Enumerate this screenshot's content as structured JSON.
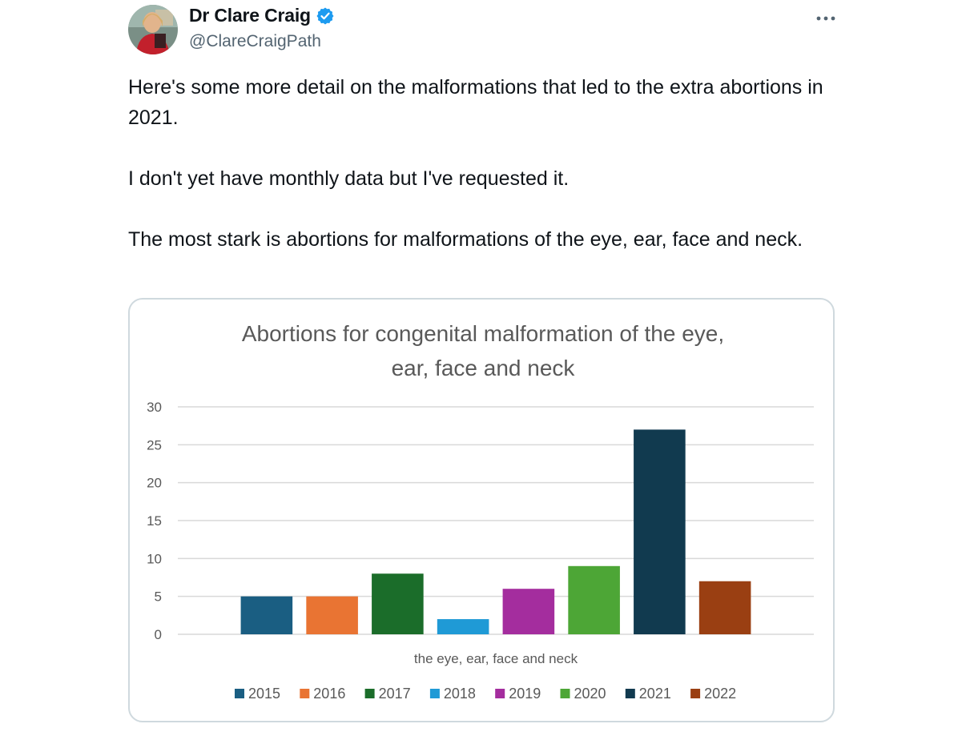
{
  "tweet": {
    "author": {
      "display_name": "Dr Clare Craig",
      "handle": "@ClareCraigPath",
      "verified": true
    },
    "more_icon": "more-horizontal-icon",
    "paragraphs": [
      "Here's some more detail on the malformations that led to the extra abortions in 2021.",
      "I don't yet have monthly data but I've requested it.",
      "The most stark is abortions for malformations of the eye, ear, face and neck."
    ]
  },
  "colors": {
    "text_primary": "#0f1419",
    "text_secondary": "#536471",
    "verified_blue": "#1d9bf0",
    "card_border": "#cfd9de"
  },
  "chart_data": {
    "type": "bar",
    "title_lines": [
      "Abortions for congenital malformation of the eye,",
      "ear, face and neck"
    ],
    "xlabel": "the eye, ear, face and neck",
    "ylabel": "",
    "ylim": [
      0,
      30
    ],
    "yticks": [
      0,
      5,
      10,
      15,
      20,
      25,
      30
    ],
    "grid": true,
    "legend_position": "bottom",
    "categories": [
      "the eye, ear, face and neck"
    ],
    "series": [
      {
        "name": "2015",
        "values": [
          5
        ],
        "color": "#1a5e82"
      },
      {
        "name": "2016",
        "values": [
          5
        ],
        "color": "#e97433"
      },
      {
        "name": "2017",
        "values": [
          8
        ],
        "color": "#1b6d2a"
      },
      {
        "name": "2018",
        "values": [
          2
        ],
        "color": "#1f9ad6"
      },
      {
        "name": "2019",
        "values": [
          6
        ],
        "color": "#a42d9e"
      },
      {
        "name": "2020",
        "values": [
          9
        ],
        "color": "#4da636"
      },
      {
        "name": "2021",
        "values": [
          27
        ],
        "color": "#113a4f"
      },
      {
        "name": "2022",
        "values": [
          7
        ],
        "color": "#9a3f12"
      }
    ]
  }
}
